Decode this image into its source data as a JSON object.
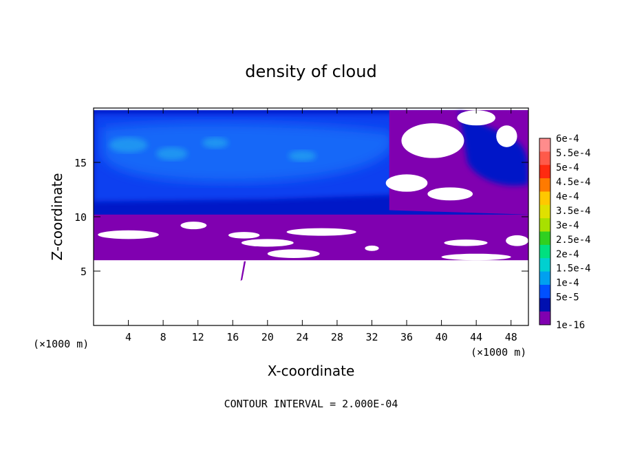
{
  "chart_data": {
    "type": "heatmap",
    "title": "density of cloud",
    "xlabel": "X-coordinate",
    "ylabel": "Z-coordinate",
    "x_unit_left": "(×1000 m)",
    "x_unit_right": "(×1000 m)",
    "footer": "CONTOUR INTERVAL = 2.000E-04",
    "xlim": [
      0,
      50
    ],
    "ylim": [
      0,
      20
    ],
    "x_ticks": [
      "4",
      "8",
      "12",
      "16",
      "20",
      "24",
      "28",
      "32",
      "36",
      "40",
      "44",
      "48"
    ],
    "y_ticks": [
      "5",
      "10",
      "15"
    ],
    "colorbar": {
      "levels": [
        "6e-4",
        "5.5e-4",
        "5e-4",
        "4.5e-4",
        "4e-4",
        "3.5e-4",
        "3e-4",
        "2.5e-4",
        "2e-4",
        "1.5e-4",
        "1e-4",
        "5e-5",
        "1e-16"
      ],
      "colors": [
        "#ff8c8c",
        "#ff5a4a",
        "#ff2a10",
        "#ff7a00",
        "#ffc800",
        "#e0e000",
        "#a8e000",
        "#30d020",
        "#00e080",
        "#00d0d0",
        "#00a0f0",
        "#0050ff",
        "#0010b0",
        "#8000b0"
      ]
    },
    "field_colors": {
      "lowest": "#8000b0",
      "low": "#0018c8",
      "mid": "#1040f0",
      "high": "#1868f8",
      "highest": "#20a0f0",
      "empty": "#ffffff"
    },
    "cloud_layers": [
      {
        "level": "lowest",
        "z_range": [
          6,
          10.5
        ],
        "note": "patchy purple layer with holes"
      },
      {
        "level": "low",
        "z_range": [
          10,
          11
        ]
      },
      {
        "level": "mid",
        "z_range": [
          11,
          19.8
        ]
      },
      {
        "level": "highest",
        "z_range": [
          13,
          18
        ]
      }
    ]
  }
}
